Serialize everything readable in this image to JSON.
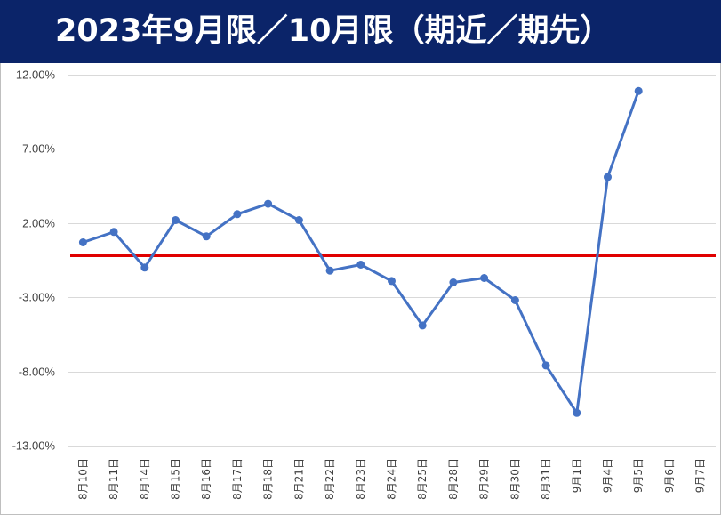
{
  "chart_data": {
    "type": "line",
    "title": "2023年9月限／10月限（期近／期先）",
    "title_bar_color": "#0b2469",
    "series_color": "#4472c4",
    "reference_line": {
      "value": -0.2,
      "color": "#e00000"
    },
    "grid": true,
    "ylim": [
      -13,
      12
    ],
    "y_ticks": [
      12,
      7,
      2,
      -3,
      -8,
      -13
    ],
    "y_tick_labels": [
      "12.00%",
      "7.00%",
      "2.00%",
      "-3.00%",
      "-8.00%",
      "-13.00%"
    ],
    "categories": [
      "8月10日",
      "8月11日",
      "8月14日",
      "8月15日",
      "8月16日",
      "8月17日",
      "8月18日",
      "8月21日",
      "8月22日",
      "8月23日",
      "8月24日",
      "8月25日",
      "8月28日",
      "8月29日",
      "8月30日",
      "8月31日",
      "9月1日",
      "9月4日",
      "9月5日",
      "9月6日",
      "9月7日"
    ],
    "series": [
      {
        "values": [
          0.7,
          1.4,
          -1.0,
          2.2,
          1.1,
          2.6,
          3.3,
          2.2,
          -1.2,
          -0.8,
          -1.9,
          -4.9,
          -2.0,
          -1.7,
          -3.2,
          -7.6,
          -10.8,
          5.1,
          10.9,
          null,
          null
        ]
      }
    ]
  }
}
